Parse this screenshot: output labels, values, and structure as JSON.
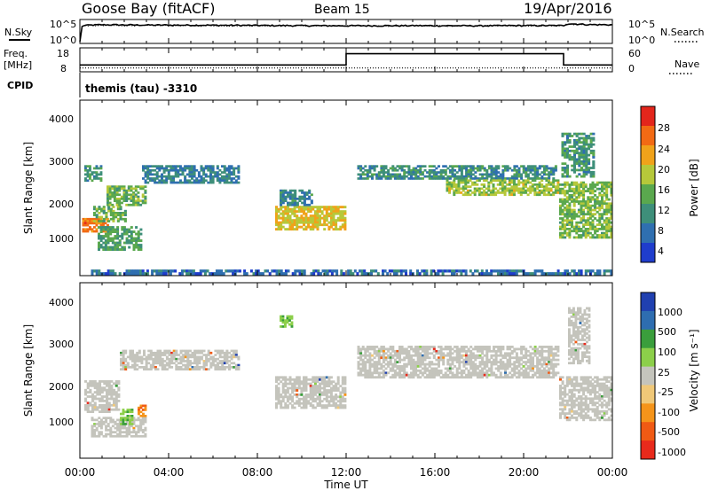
{
  "header": {
    "station": "Goose Bay (fitACF)",
    "beam": "Beam 15",
    "date": "19/Apr/2016"
  },
  "noise_panel": {
    "left_label": "N.Sky",
    "right_label": "N.Search",
    "left_ticks": [
      "10^5",
      "10^0"
    ],
    "right_ticks": [
      "10^5",
      "10^0"
    ]
  },
  "freq_panel": {
    "left_label_line1": "Freq.",
    "left_label_line2": "[MHz]",
    "right_label": "Nave",
    "left_ticks": [
      "18",
      "8"
    ],
    "right_ticks": [
      "60",
      "0"
    ]
  },
  "cpid": {
    "label": "CPID",
    "text": "themis (tau) -3310"
  },
  "power_panel": {
    "ylabel": "Slant Range [km]",
    "yticks": [
      "4000",
      "3000",
      "2000",
      "1000"
    ],
    "colorbar_label": "Power [dB]",
    "colorbar_ticks": [
      "28",
      "24",
      "20",
      "16",
      "12",
      "8",
      "4"
    ]
  },
  "velocity_panel": {
    "ylabel": "Slant Range [km]",
    "yticks": [
      "4000",
      "3000",
      "2000",
      "1000"
    ],
    "colorbar_label": "Velocity [m s⁻¹]",
    "colorbar_ticks": [
      "1000",
      "500",
      "100",
      "25",
      "-25",
      "-100",
      "-500",
      "-1000"
    ]
  },
  "xaxis": {
    "label": "Time UT",
    "ticks": [
      "00:00",
      "04:00",
      "08:00",
      "12:00",
      "16:00",
      "20:00",
      "00:00"
    ]
  },
  "colors": {
    "power_scale": [
      "#1f3dcc",
      "#2f6fb0",
      "#3e8f7a",
      "#5aa84e",
      "#b6c83a",
      "#f0a21a",
      "#f26a14",
      "#e3261c"
    ],
    "velocity_scale": [
      "#e82a1c",
      "#f05a14",
      "#f5941a",
      "#f0c878",
      "#c4c4bc",
      "#8ccf4a",
      "#3a9e3c",
      "#2e6db0",
      "#2040b0"
    ],
    "ground_scatter": "#c4c4bc"
  },
  "chart_data": [
    {
      "type": "line",
      "title": "N.Sky / N.Search",
      "x_range_hours": [
        0,
        24
      ],
      "y_scale": "log",
      "series": [
        {
          "name": "N.Sky",
          "style": "solid",
          "points": [
            [
              0,
              1
            ],
            [
              0.2,
              10000
            ],
            [
              1,
              14000
            ],
            [
              3,
              12000
            ],
            [
              6,
              11000
            ],
            [
              9,
              9000
            ],
            [
              12,
              8000
            ],
            [
              15,
              8500
            ],
            [
              18,
              8000
            ],
            [
              20,
              9000
            ],
            [
              21.8,
              9000
            ],
            [
              22,
              25000
            ],
            [
              23,
              15000
            ],
            [
              24,
              14000
            ]
          ]
        },
        {
          "name": "N.Search",
          "style": "dotted",
          "points": [
            [
              0,
              1
            ],
            [
              0.2,
              9000
            ],
            [
              12,
              7500
            ],
            [
              21.8,
              8000
            ],
            [
              22,
              20000
            ],
            [
              24,
              12000
            ]
          ]
        }
      ]
    },
    {
      "type": "line",
      "title": "Freq. / Nave",
      "x_range_hours": [
        0,
        24
      ],
      "series": [
        {
          "name": "Freq.",
          "unit": "MHz",
          "style": "solid",
          "points": [
            [
              0,
              10.5
            ],
            [
              12,
              10.5
            ],
            [
              12,
              16
            ],
            [
              21.8,
              16
            ],
            [
              21.8,
              10.5
            ],
            [
              24,
              10.5
            ]
          ]
        },
        {
          "name": "Nave",
          "style": "dotted",
          "points": [
            [
              0,
              9
            ],
            [
              24,
              9
            ]
          ]
        }
      ]
    },
    {
      "type": "heatmap",
      "title": "Power [dB]",
      "x_range_hours": [
        0,
        24
      ],
      "y_range_km": [
        180,
        4500
      ],
      "color_range": [
        0,
        32
      ],
      "regions": [
        {
          "t": [
            0.1,
            1.3
          ],
          "r": [
            1250,
            1600
          ],
          "value": 26
        },
        {
          "t": [
            0.6,
            2.1
          ],
          "r": [
            1500,
            1900
          ],
          "value": 14
        },
        {
          "t": [
            1.2,
            3.0
          ],
          "r": [
            1900,
            2400
          ],
          "value": 14
        },
        {
          "t": [
            0.2,
            1.0
          ],
          "r": [
            2500,
            2900
          ],
          "value": 10
        },
        {
          "t": [
            0.8,
            2.8
          ],
          "r": [
            800,
            1400
          ],
          "value": 12
        },
        {
          "t": [
            2.8,
            7.2
          ],
          "r": [
            2450,
            2900
          ],
          "value": 7
        },
        {
          "t": [
            8.8,
            12.0
          ],
          "r": [
            1300,
            1900
          ],
          "value": 20
        },
        {
          "t": [
            9.0,
            10.5
          ],
          "r": [
            1900,
            2300
          ],
          "value": 8
        },
        {
          "t": [
            12.5,
            21.5
          ],
          "r": [
            2550,
            2900
          ],
          "value": 9
        },
        {
          "t": [
            16.5,
            21.6
          ],
          "r": [
            2150,
            2550
          ],
          "value": 17
        },
        {
          "t": [
            21.6,
            24.0
          ],
          "r": [
            1100,
            2500
          ],
          "value": 15
        },
        {
          "t": [
            21.7,
            23.2
          ],
          "r": [
            2600,
            3700
          ],
          "value": 10
        },
        {
          "t": [
            0.5,
            24.0
          ],
          "r": [
            200,
            330
          ],
          "value": 5
        }
      ]
    },
    {
      "type": "heatmap",
      "title": "Velocity [m s⁻¹]",
      "x_range_hours": [
        0,
        24
      ],
      "y_range_km": [
        180,
        4500
      ],
      "color_range": [
        -1000,
        1000
      ],
      "regions": [
        {
          "t": [
            0.2,
            1.8
          ],
          "r": [
            1300,
            2100
          ],
          "value": 0
        },
        {
          "t": [
            0.5,
            3.0
          ],
          "r": [
            700,
            1200
          ],
          "value": 0
        },
        {
          "t": [
            1.8,
            7.2
          ],
          "r": [
            2350,
            2850
          ],
          "value": 0
        },
        {
          "t": [
            1.8,
            2.4
          ],
          "r": [
            1000,
            1400
          ],
          "value": 80
        },
        {
          "t": [
            2.6,
            3.0
          ],
          "r": [
            1200,
            1500
          ],
          "value": -200
        },
        {
          "t": [
            8.8,
            12.0
          ],
          "r": [
            1400,
            2200
          ],
          "value": 0
        },
        {
          "t": [
            9.0,
            9.6
          ],
          "r": [
            3400,
            3700
          ],
          "value": 80
        },
        {
          "t": [
            12.5,
            21.6
          ],
          "r": [
            2150,
            2950
          ],
          "value": 0
        },
        {
          "t": [
            21.6,
            24.0
          ],
          "r": [
            1100,
            2200
          ],
          "value": 0
        },
        {
          "t": [
            22.0,
            23.0
          ],
          "r": [
            2500,
            3900
          ],
          "value": 0
        }
      ]
    }
  ]
}
